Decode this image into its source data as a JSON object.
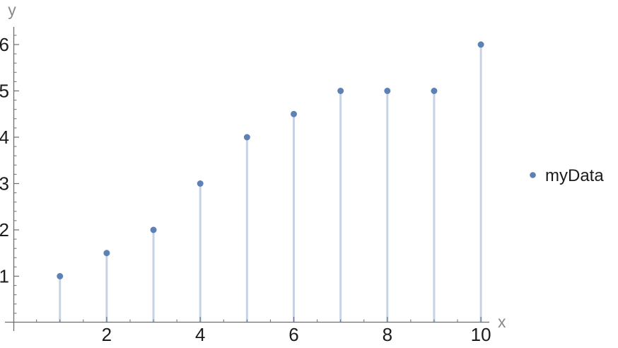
{
  "chart_data": {
    "type": "scatter",
    "style": "stem-plot (points with vertical filling lines to the x-axis)",
    "title": "",
    "xlabel": "x",
    "ylabel": "y",
    "series": [
      {
        "name": "myData",
        "x": [
          1,
          2,
          3,
          4,
          5,
          6,
          7,
          8,
          9,
          10
        ],
        "y": [
          1,
          1.5,
          2,
          3,
          4,
          4.5,
          5,
          5,
          5,
          6
        ]
      }
    ],
    "xlim": [
      0,
      10.2
    ],
    "ylim": [
      0,
      6.4
    ],
    "x_major_ticks": [
      2,
      4,
      6,
      8,
      10
    ],
    "x_major_tick_labels": [
      "2",
      "4",
      "6",
      "8",
      "10"
    ],
    "x_minor_tick_step": 0.5,
    "y_major_ticks": [
      1,
      2,
      3,
      4,
      5,
      6
    ],
    "y_major_tick_labels": [
      "1",
      "2",
      "3",
      "4",
      "5",
      "6"
    ],
    "y_minor_tick_step": 0.2,
    "grid": false,
    "marker": "filled-circle",
    "legend": {
      "position": "right-center",
      "entries": [
        "myData"
      ]
    }
  },
  "colors": {
    "background": "#ffffff",
    "point": "#5e81b5",
    "stem": "rgba(94,129,181,0.35)",
    "axis": "#6e6e6e",
    "tick": "#6e6e6e",
    "tick_label": "#1b1b1b",
    "axis_unit_label": "#8a8a8a",
    "legend_text": "#1b1b1b"
  }
}
